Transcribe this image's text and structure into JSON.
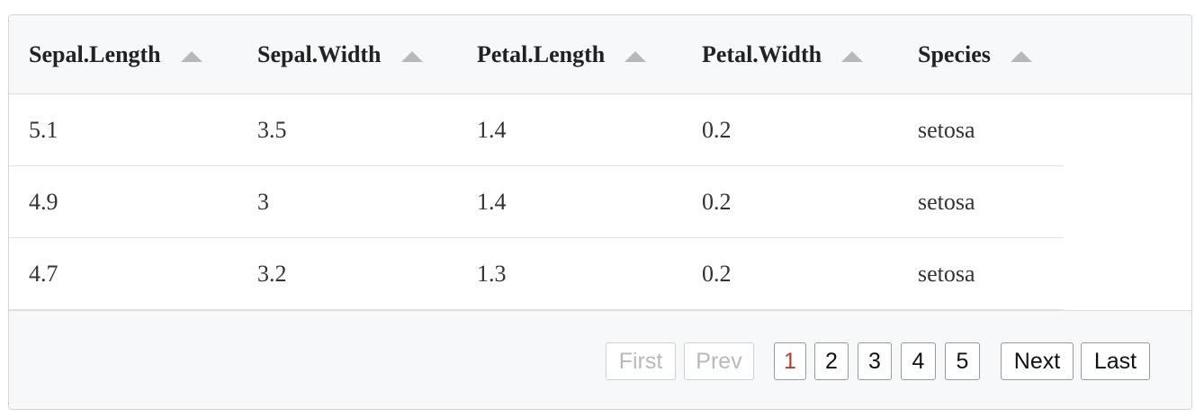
{
  "table": {
    "columns": [
      {
        "label": "Sepal.Length",
        "sort": "ascending"
      },
      {
        "label": "Sepal.Width",
        "sort": "ascending"
      },
      {
        "label": "Petal.Length",
        "sort": "ascending"
      },
      {
        "label": "Petal.Width",
        "sort": "ascending"
      },
      {
        "label": "Species",
        "sort": "ascending"
      }
    ],
    "rows": [
      [
        "5.1",
        "3.5",
        "1.4",
        "0.2",
        "setosa"
      ],
      [
        "4.9",
        "3",
        "1.4",
        "0.2",
        "setosa"
      ],
      [
        "4.7",
        "3.2",
        "1.3",
        "0.2",
        "setosa"
      ]
    ]
  },
  "pagination": {
    "first_label": "First",
    "prev_label": "Prev",
    "pages": [
      "1",
      "2",
      "3",
      "4",
      "5"
    ],
    "current_page": "1",
    "next_label": "Next",
    "last_label": "Last",
    "current_color": "#c0392b",
    "disabled_color": "#b9b9b9"
  }
}
